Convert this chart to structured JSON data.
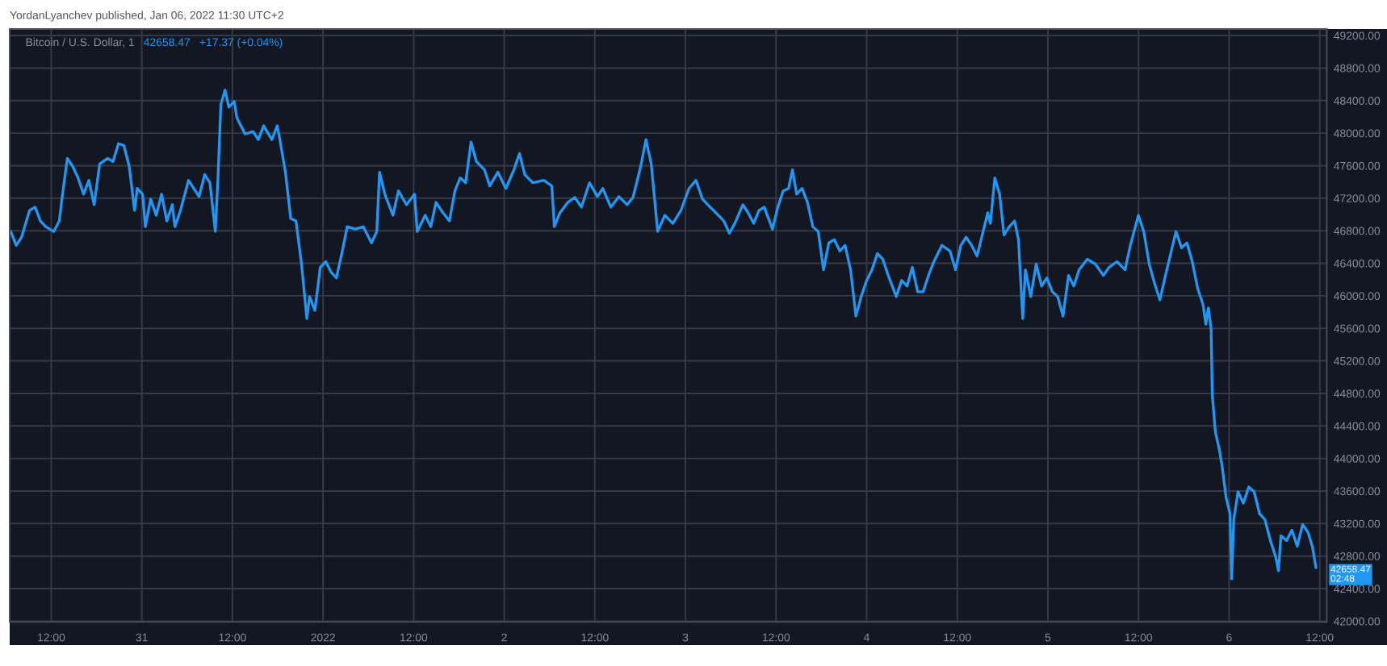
{
  "chart_data": {
    "type": "line",
    "title": "YordanLyanchev published, Jan 06, 2022 11:30 UTC+2",
    "subtitle": "Bitcoin / U.S. Dollar, 1",
    "annotations": [
      "42658.47",
      "+17.37 (+0.04%)",
      {
        "text": "42658.47\n02:48",
        "x": "2022-01-06T11:30",
        "y": 42658.47
      }
    ],
    "series": [
      {
        "color": "#2196f3",
        "x": [
          "2021-12-30T06:39",
          "2021-12-30T07:22",
          "2021-12-30T08:04",
          "2021-12-30T09:08",
          "2021-12-30T09:52",
          "2021-12-30T10:34",
          "2021-12-30T11:16",
          "2021-12-30T12:20",
          "2021-12-30T13:04",
          "2021-12-30T13:25",
          "2021-12-30T14:08",
          "2021-12-30T14:51",
          "2021-12-30T15:33",
          "2021-12-30T16:17",
          "2021-12-30T16:59",
          "2021-12-30T17:41",
          "2021-12-30T18:25",
          "2021-12-30T19:29",
          "2021-12-30T20:11",
          "2021-12-30T20:54",
          "2021-12-30T21:37",
          "2021-12-30T22:20",
          "2021-12-30T23:02",
          "2021-12-30T23:24",
          "2021-12-31T00:06",
          "2021-12-31T00:28",
          "2021-12-31T01:10",
          "2021-12-31T01:54",
          "2021-12-31T02:37",
          "2021-12-31T03:19",
          "2021-12-31T04:02",
          "2021-12-31T04:23",
          "2021-12-31T05:07",
          "2021-12-31T06:11",
          "2021-12-31T06:53",
          "2021-12-31T07:35",
          "2021-12-31T08:19",
          "2021-12-31T09:01",
          "2021-12-31T09:44",
          "2021-12-31T10:05",
          "2021-12-31T10:28",
          "2021-12-31T11:01",
          "2021-12-31T11:31",
          "2021-12-31T12:14",
          "2021-12-31T12:35",
          "2021-12-31T13:40",
          "2021-12-31T14:44",
          "2021-12-31T15:26",
          "2021-12-31T16:08",
          "2021-12-31T17:13",
          "2021-12-31T17:56",
          "2021-12-31T18:17",
          "2021-12-31T19:01",
          "2021-12-31T19:43",
          "2021-12-31T20:25",
          "2021-12-31T21:09",
          "2021-12-31T21:51",
          "2021-12-31T22:13",
          "2021-12-31T22:55",
          "2021-12-31T23:38",
          "2022-01-01T00:22",
          "2022-01-01T01:04",
          "2022-01-01T01:46",
          "2022-01-01T02:29",
          "2022-01-01T03:12",
          "2022-01-01T04:16",
          "2022-01-01T05:20",
          "2022-01-01T06:25",
          "2022-01-01T07:07",
          "2022-01-01T07:29",
          "2022-01-01T08:11",
          "2022-01-01T09:15",
          "2022-01-01T09:59",
          "2022-01-01T11:03",
          "2022-01-01T12:07",
          "2022-01-01T12:28",
          "2022-01-01T13:32",
          "2022-01-01T14:16",
          "2022-01-01T14:58",
          "2022-01-01T15:49",
          "2022-01-01T16:44",
          "2022-01-01T17:28",
          "2022-01-01T18:10",
          "2022-01-01T18:53",
          "2022-01-01T19:36",
          "2022-01-01T20:19",
          "2022-01-01T21:23",
          "2022-01-01T22:05",
          "2022-01-01T23:09",
          "2022-01-02T00:13",
          "2022-01-02T01:17",
          "2022-01-02T02:01",
          "2022-01-02T02:43",
          "2022-01-02T03:47",
          "2022-01-02T05:14",
          "2022-01-02T06:18",
          "2022-01-02T06:38",
          "2022-01-02T07:22",
          "2022-01-02T08:26",
          "2022-01-02T09:21",
          "2022-01-02T10:13",
          "2022-01-02T11:17",
          "2022-01-02T12:21",
          "2022-01-02T13:03",
          "2022-01-02T14:07",
          "2022-01-02T15:11",
          "2022-01-02T16:16",
          "2022-01-02T17:03",
          "2022-01-02T18:04",
          "2022-01-02T18:46",
          "2022-01-02T19:28",
          "2022-01-02T20:19",
          "2022-01-02T21:16",
          "2022-01-02T22:20",
          "2022-01-02T23:24",
          "2022-01-03T00:28",
          "2022-01-03T01:23",
          "2022-01-03T02:15",
          "2022-01-03T02:57",
          "2022-01-03T04:02",
          "2022-01-03T05:05",
          "2022-01-03T05:49",
          "2022-01-03T06:32",
          "2022-01-03T07:36",
          "2022-01-03T08:18",
          "2022-01-03T09:02",
          "2022-01-03T09:44",
          "2022-01-03T10:26",
          "2022-01-03T11:31",
          "2022-01-03T12:14",
          "2022-01-03T12:56",
          "2022-01-03T13:39",
          "2022-01-03T14:10",
          "2022-01-03T14:43",
          "2022-01-03T15:26",
          "2022-01-03T16:09",
          "2022-01-03T16:52",
          "2022-01-03T17:35",
          "2022-01-03T18:17",
          "2022-01-03T18:59",
          "2022-01-03T19:43",
          "2022-01-03T20:26",
          "2022-01-03T21:08",
          "2022-01-03T21:52",
          "2022-01-03T22:34",
          "2022-01-03T23:16",
          "2022-01-04T00:00",
          "2022-01-04T00:42",
          "2022-01-04T01:25",
          "2022-01-04T02:08",
          "2022-01-04T02:51",
          "2022-01-04T03:55",
          "2022-01-04T04:37",
          "2022-01-04T05:21",
          "2022-01-04T06:03",
          "2022-01-04T06:45",
          "2022-01-04T07:29",
          "2022-01-04T08:11",
          "2022-01-04T08:54",
          "2022-01-04T09:58",
          "2022-01-04T11:02",
          "2022-01-04T11:46",
          "2022-01-04T12:28",
          "2022-01-04T13:10",
          "2022-01-04T13:54",
          "2022-01-04T14:37",
          "2022-01-04T15:19",
          "2022-01-04T16:02",
          "2022-01-04T16:23",
          "2022-01-04T16:58",
          "2022-01-04T17:36",
          "2022-01-04T18:11",
          "2022-01-04T18:53",
          "2022-01-04T19:35",
          "2022-01-04T20:06",
          "2022-01-04T20:40",
          "2022-01-04T21:01",
          "2022-01-04T21:44",
          "2022-01-04T22:27",
          "2022-01-04T23:10",
          "2022-01-04T23:52",
          "2022-01-05T00:35",
          "2022-01-05T01:18",
          "2022-01-05T02:00",
          "2022-01-05T02:44",
          "2022-01-05T03:26",
          "2022-01-05T04:08",
          "2022-01-05T05:13",
          "2022-01-05T06:17",
          "2022-01-05T07:21",
          "2022-01-05T08:05",
          "2022-01-05T09:09",
          "2022-01-05T10:13",
          "2022-01-05T10:55",
          "2022-01-05T11:59",
          "2022-01-05T12:42",
          "2022-01-05T13:25",
          "2022-01-05T14:08",
          "2022-01-05T14:50",
          "2022-01-05T15:34",
          "2022-01-05T16:16",
          "2022-01-05T16:58",
          "2022-01-05T17:42",
          "2022-01-05T18:25",
          "2022-01-05T19:07",
          "2022-01-05T19:50",
          "2022-01-05T20:33",
          "2022-01-05T20:55",
          "2022-01-05T21:15",
          "2022-01-05T21:37",
          "2022-01-05T21:46",
          "2022-01-05T22:11",
          "2022-01-05T22:41",
          "2022-01-05T23:03",
          "2022-01-05T23:36",
          "2022-01-06T00:07",
          "2022-01-06T00:20",
          "2022-01-06T00:37",
          "2022-01-06T01:11",
          "2022-01-06T01:53",
          "2022-01-06T02:36",
          "2022-01-06T03:19",
          "2022-01-06T04:02",
          "2022-01-06T04:44",
          "2022-01-06T05:28",
          "2022-01-06T06:10",
          "2022-01-06T06:32",
          "2022-01-06T06:52",
          "2022-01-06T07:36",
          "2022-01-06T08:19",
          "2022-01-06T09:01",
          "2022-01-06T09:44",
          "2022-01-06T10:27",
          "2022-01-06T11:01",
          "2022-01-06T11:30"
        ],
        "values": [
          46790,
          46620,
          46720,
          47050,
          47090,
          46920,
          46850,
          46790,
          46920,
          47190,
          47690,
          47590,
          47450,
          47250,
          47420,
          47120,
          47620,
          47690,
          47650,
          47870,
          47850,
          47590,
          47050,
          47320,
          47250,
          46850,
          47190,
          46990,
          47250,
          46920,
          47120,
          46850,
          47050,
          47420,
          47320,
          47220,
          47490,
          47390,
          46790,
          47450,
          48350,
          48530,
          48320,
          48390,
          48190,
          47990,
          48020,
          47920,
          48090,
          47920,
          48090,
          47920,
          47520,
          46950,
          46920,
          46390,
          45720,
          45990,
          45820,
          46350,
          46420,
          46290,
          46220,
          46520,
          46850,
          46820,
          46850,
          46650,
          46790,
          47520,
          47250,
          46990,
          47290,
          47120,
          47250,
          46790,
          46990,
          46850,
          47150,
          47030,
          46920,
          47290,
          47450,
          47390,
          47890,
          47650,
          47550,
          47350,
          47520,
          47320,
          47550,
          47750,
          47490,
          47390,
          47420,
          47350,
          46850,
          47020,
          47150,
          47210,
          47090,
          47390,
          47220,
          47320,
          47090,
          47220,
          47120,
          47210,
          47590,
          47920,
          47620,
          46790,
          46990,
          46890,
          47050,
          47320,
          47420,
          47190,
          47120,
          47020,
          46920,
          46770,
          46890,
          47120,
          47020,
          46890,
          47050,
          47090,
          46820,
          47090,
          47290,
          47320,
          47550,
          47250,
          47320,
          47150,
          46850,
          46790,
          46320,
          46650,
          46690,
          46550,
          46620,
          46320,
          45750,
          45990,
          46190,
          46320,
          46520,
          46450,
          46250,
          45990,
          46190,
          46120,
          46350,
          46050,
          46050,
          46250,
          46420,
          46620,
          46550,
          46320,
          46620,
          46720,
          46620,
          46490,
          46750,
          47020,
          46890,
          47450,
          47250,
          46750,
          46850,
          46920,
          46690,
          45720,
          46320,
          45990,
          46390,
          46120,
          46220,
          46050,
          45990,
          45750,
          46250,
          46120,
          46320,
          46450,
          46390,
          46250,
          46350,
          46420,
          46320,
          46620,
          46990,
          46790,
          46390,
          46150,
          45950,
          46250,
          46520,
          46790,
          46590,
          46650,
          46420,
          46090,
          45890,
          45650,
          45850,
          45590,
          44790,
          44320,
          44120,
          43920,
          43520,
          43320,
          42520,
          43250,
          43590,
          43450,
          43650,
          43590,
          43320,
          43250,
          42990,
          42790,
          42620,
          43050,
          42990,
          43120,
          42920,
          43190,
          43090,
          42920,
          42658.47
        ]
      }
    ],
    "xlim": [
      "2021-12-30T06:30",
      "2022-01-06T12:56"
    ],
    "xticks": [
      {
        "value": "2021-12-30T12:00",
        "label": "12:00"
      },
      {
        "value": "2021-12-31T00:00",
        "label": "31"
      },
      {
        "value": "2021-12-31T12:00",
        "label": "12:00"
      },
      {
        "value": "2022-01-01T00:00",
        "label": "2022"
      },
      {
        "value": "2022-01-01T12:00",
        "label": "12:00"
      },
      {
        "value": "2022-01-02T00:00",
        "label": "2"
      },
      {
        "value": "2022-01-02T12:00",
        "label": "12:00"
      },
      {
        "value": "2022-01-03T00:00",
        "label": "3"
      },
      {
        "value": "2022-01-03T12:00",
        "label": "12:00"
      },
      {
        "value": "2022-01-04T00:00",
        "label": "4"
      },
      {
        "value": "2022-01-04T12:00",
        "label": "12:00"
      },
      {
        "value": "2022-01-05T00:00",
        "label": "5"
      },
      {
        "value": "2022-01-05T12:00",
        "label": "12:00"
      },
      {
        "value": "2022-01-06T00:00",
        "label": "6"
      },
      {
        "value": "2022-01-06T12:00",
        "label": "12:00"
      }
    ],
    "ylim": [
      41990,
      49280
    ],
    "yticks": [
      {
        "value": 42000,
        "label": "42000.00"
      },
      {
        "value": 42400,
        "label": "42400.00"
      },
      {
        "value": 42800,
        "label": "42800.00"
      },
      {
        "value": 43200,
        "label": "43200.00"
      },
      {
        "value": 43600,
        "label": "43600.00"
      },
      {
        "value": 44000,
        "label": "44000.00"
      },
      {
        "value": 44400,
        "label": "44400.00"
      },
      {
        "value": 44800,
        "label": "44800.00"
      },
      {
        "value": 45200,
        "label": "45200.00"
      },
      {
        "value": 45600,
        "label": "45600.00"
      },
      {
        "value": 46000,
        "label": "46000.00"
      },
      {
        "value": 46400,
        "label": "46400.00"
      },
      {
        "value": 46800,
        "label": "46800.00"
      },
      {
        "value": 47200,
        "label": "47200.00"
      },
      {
        "value": 47600,
        "label": "47600.00"
      },
      {
        "value": 48000,
        "label": "48000.00"
      },
      {
        "value": 48400,
        "label": "48400.00"
      },
      {
        "value": 48800,
        "label": "48800.00"
      },
      {
        "value": 49200,
        "label": "49200.00"
      }
    ],
    "grid": true,
    "line_style": "solid"
  }
}
